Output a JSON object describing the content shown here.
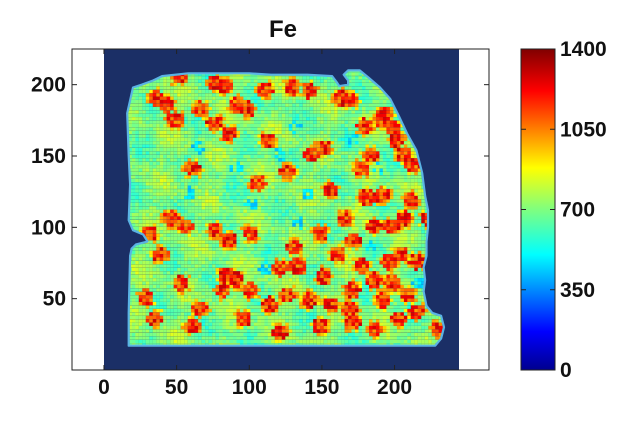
{
  "chart_data": {
    "type": "heatmap",
    "title": "Fe",
    "xlabel": "",
    "ylabel": "",
    "xlim": [
      -22,
      265
    ],
    "ylim": [
      0,
      225
    ],
    "image_extent_x": [
      0,
      247
    ],
    "image_extent_y": [
      0,
      225
    ],
    "xticks": [
      "0",
      "50",
      "100",
      "150",
      "200"
    ],
    "xtick_values": [
      0,
      50,
      100,
      150,
      200
    ],
    "yticks": [
      "50",
      "100",
      "150",
      "200"
    ],
    "ytick_values": [
      50,
      100,
      150,
      200
    ],
    "colorbar": {
      "min": 0,
      "max": 1400,
      "ticks": [
        "0",
        "350",
        "700",
        "1050",
        "1400"
      ],
      "tick_values": [
        0,
        350,
        700,
        1050,
        1400
      ],
      "colormap": "jet"
    },
    "background_value": 0,
    "typical_value_range": [
      550,
      850
    ],
    "hotspot_value_range": [
      1000,
      1300
    ],
    "sample_outline": [
      [
        17,
        17
      ],
      [
        228,
        17
      ],
      [
        232,
        22
      ],
      [
        234,
        30
      ],
      [
        232,
        38
      ],
      [
        226,
        40
      ],
      [
        222,
        45
      ],
      [
        220,
        55
      ],
      [
        221,
        63
      ],
      [
        220,
        72
      ],
      [
        222,
        80
      ],
      [
        222,
        90
      ],
      [
        223,
        100
      ],
      [
        223,
        112
      ],
      [
        221,
        122
      ],
      [
        219,
        138
      ],
      [
        215,
        154
      ],
      [
        209,
        165
      ],
      [
        203,
        178
      ],
      [
        197,
        190
      ],
      [
        190,
        198
      ],
      [
        182,
        205
      ],
      [
        176,
        210
      ],
      [
        168,
        210
      ],
      [
        165,
        207
      ],
      [
        168,
        203
      ],
      [
        168,
        200
      ],
      [
        162,
        199
      ],
      [
        160,
        202
      ],
      [
        157,
        206
      ],
      [
        140,
        207
      ],
      [
        115,
        207
      ],
      [
        100,
        208
      ],
      [
        80,
        208
      ],
      [
        58,
        208
      ],
      [
        40,
        206
      ],
      [
        34,
        203
      ],
      [
        26,
        200
      ],
      [
        20,
        198
      ],
      [
        16,
        180
      ],
      [
        17,
        150
      ],
      [
        18,
        130
      ],
      [
        17,
        105
      ],
      [
        20,
        98
      ],
      [
        27,
        95
      ],
      [
        30,
        90
      ],
      [
        22,
        88
      ],
      [
        19,
        85
      ],
      [
        18,
        80
      ],
      [
        17,
        40
      ],
      [
        17,
        17
      ]
    ],
    "hotspots": [
      [
        35,
        190
      ],
      [
        42,
        185
      ],
      [
        50,
        205
      ],
      [
        48,
        175
      ],
      [
        65,
        182
      ],
      [
        75,
        200
      ],
      [
        82,
        198
      ],
      [
        90,
        185
      ],
      [
        98,
        182
      ],
      [
        110,
        195
      ],
      [
        128,
        197
      ],
      [
        140,
        195
      ],
      [
        162,
        190
      ],
      [
        168,
        188
      ],
      [
        178,
        170
      ],
      [
        190,
        175
      ],
      [
        192,
        178
      ],
      [
        198,
        168
      ],
      [
        200,
        160
      ],
      [
        205,
        150
      ],
      [
        211,
        143
      ],
      [
        182,
        150
      ],
      [
        176,
        140
      ],
      [
        142,
        150
      ],
      [
        150,
        155
      ],
      [
        112,
        160
      ],
      [
        85,
        165
      ],
      [
        75,
        172
      ],
      [
        60,
        140
      ],
      [
        105,
        130
      ],
      [
        125,
        138
      ],
      [
        155,
        125
      ],
      [
        180,
        120
      ],
      [
        190,
        122
      ],
      [
        197,
        100
      ],
      [
        210,
        118
      ],
      [
        206,
        105
      ],
      [
        222,
        105
      ],
      [
        45,
        105
      ],
      [
        55,
        100
      ],
      [
        75,
        97
      ],
      [
        85,
        90
      ],
      [
        100,
        95
      ],
      [
        130,
        85
      ],
      [
        148,
        95
      ],
      [
        165,
        105
      ],
      [
        170,
        90
      ],
      [
        185,
        100
      ],
      [
        195,
        75
      ],
      [
        203,
        80
      ],
      [
        160,
        80
      ],
      [
        120,
        70
      ],
      [
        132,
        72
      ],
      [
        150,
        65
      ],
      [
        170,
        55
      ],
      [
        185,
        62
      ],
      [
        197,
        60
      ],
      [
        208,
        52
      ],
      [
        214,
        40
      ],
      [
        202,
        35
      ],
      [
        191,
        48
      ],
      [
        170,
        32
      ],
      [
        168,
        42
      ],
      [
        185,
        28
      ],
      [
        230,
        28
      ],
      [
        155,
        45
      ],
      [
        140,
        48
      ],
      [
        125,
        52
      ],
      [
        113,
        45
      ],
      [
        100,
        55
      ],
      [
        90,
        62
      ],
      [
        80,
        55
      ],
      [
        65,
        42
      ],
      [
        52,
        60
      ],
      [
        38,
        80
      ],
      [
        30,
        95
      ],
      [
        28,
        50
      ],
      [
        34,
        35
      ],
      [
        60,
        30
      ],
      [
        95,
        35
      ],
      [
        120,
        26
      ],
      [
        148,
        30
      ],
      [
        83,
        66
      ],
      [
        176,
        72
      ],
      [
        214,
        75
      ]
    ],
    "lowspots": [
      [
        64,
        155
      ],
      [
        120,
        150
      ],
      [
        130,
        170
      ],
      [
        187,
        140
      ],
      [
        182,
        86
      ],
      [
        170,
        160
      ],
      [
        100,
        115
      ],
      [
        132,
        102
      ],
      [
        58,
        123
      ],
      [
        110,
        70
      ],
      [
        215,
        60
      ],
      [
        140,
        122
      ],
      [
        90,
        140
      ]
    ]
  }
}
